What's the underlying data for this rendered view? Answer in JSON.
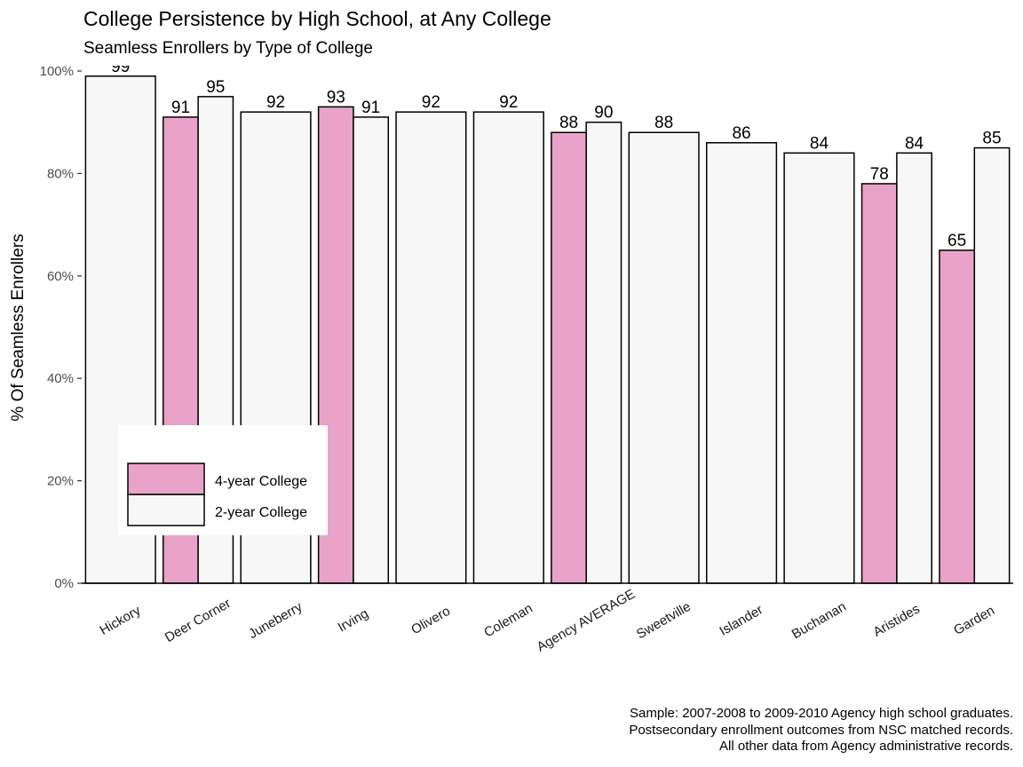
{
  "chart_data": {
    "type": "bar",
    "title": "College Persistence by High School, at Any College",
    "subtitle": "Seamless Enrollers by Type of College",
    "ylabel": "% Of Seamless Enrollers",
    "xlabel": "",
    "ylim": [
      0,
      100
    ],
    "yticks": [
      "0%",
      "20%",
      "40%",
      "60%",
      "80%",
      "100%"
    ],
    "categories": [
      "Hickory",
      "Deer Corner",
      "Juneberry",
      "Irving",
      "Olivero",
      "Coleman",
      "Agency AVERAGE",
      "Sweetville",
      "Islander",
      "Buchanan",
      "Aristides",
      "Garden"
    ],
    "series": [
      {
        "name": "4-year College",
        "color": "#e9a3c9",
        "values": [
          null,
          91,
          null,
          93,
          null,
          null,
          88,
          null,
          null,
          null,
          78,
          65
        ],
        "labels": [
          null,
          "91",
          null,
          "93",
          null,
          null,
          "88",
          null,
          null,
          null,
          "78",
          "65"
        ]
      },
      {
        "name": "2-year College",
        "color": "#f7f7f7",
        "values": [
          99,
          95,
          92,
          91,
          92,
          92,
          90,
          88,
          86,
          84,
          84,
          85
        ],
        "labels": [
          "99",
          "95",
          "92",
          "91",
          "92",
          "92",
          "90",
          "88",
          "86",
          "84",
          "84",
          "85"
        ]
      }
    ],
    "legend_position": "bottom-left",
    "grid": false
  },
  "caption": [
    "Sample: 2007-2008 to 2009-2010 Agency high school graduates.",
    "Postsecondary enrollment outcomes from NSC matched records.",
    "All other data from Agency administrative records."
  ]
}
